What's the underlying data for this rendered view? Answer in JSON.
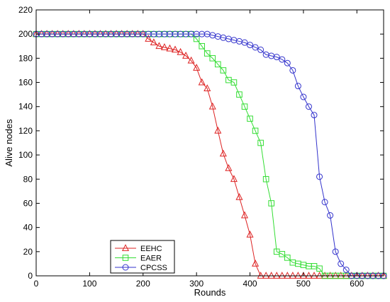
{
  "chart_data": {
    "type": "line",
    "xlabel": "Rounds",
    "ylabel": "Alive nodes",
    "xlim": [
      0,
      650
    ],
    "ylim": [
      0,
      220
    ],
    "xticks": [
      0,
      100,
      200,
      300,
      400,
      500,
      600
    ],
    "yticks": [
      0,
      20,
      40,
      60,
      80,
      100,
      120,
      140,
      160,
      180,
      200,
      220
    ],
    "grid": false,
    "legend_position": "bottom-left",
    "series": [
      {
        "name": "EEHC",
        "color": "#dd2222",
        "marker": "triangle",
        "points": [
          [
            0,
            200
          ],
          [
            10,
            200
          ],
          [
            20,
            200
          ],
          [
            30,
            200
          ],
          [
            40,
            200
          ],
          [
            50,
            200
          ],
          [
            60,
            200
          ],
          [
            70,
            200
          ],
          [
            80,
            200
          ],
          [
            90,
            200
          ],
          [
            100,
            200
          ],
          [
            110,
            200
          ],
          [
            120,
            200
          ],
          [
            130,
            200
          ],
          [
            140,
            200
          ],
          [
            150,
            200
          ],
          [
            160,
            200
          ],
          [
            170,
            200
          ],
          [
            180,
            200
          ],
          [
            190,
            200
          ],
          [
            200,
            200
          ],
          [
            210,
            196
          ],
          [
            220,
            193
          ],
          [
            230,
            190
          ],
          [
            240,
            189
          ],
          [
            250,
            188
          ],
          [
            260,
            187
          ],
          [
            270,
            185
          ],
          [
            280,
            182
          ],
          [
            290,
            178
          ],
          [
            300,
            172
          ],
          [
            310,
            160
          ],
          [
            320,
            155
          ],
          [
            330,
            140
          ],
          [
            340,
            120
          ],
          [
            350,
            101
          ],
          [
            360,
            89
          ],
          [
            370,
            80
          ],
          [
            380,
            65
          ],
          [
            390,
            50
          ],
          [
            400,
            34
          ],
          [
            410,
            10
          ],
          [
            420,
            0
          ],
          [
            430,
            0
          ],
          [
            440,
            0
          ],
          [
            450,
            0
          ],
          [
            460,
            0
          ],
          [
            470,
            0
          ],
          [
            480,
            0
          ],
          [
            490,
            0
          ],
          [
            500,
            0
          ],
          [
            510,
            0
          ],
          [
            520,
            0
          ],
          [
            530,
            0
          ],
          [
            540,
            0
          ],
          [
            550,
            0
          ],
          [
            560,
            0
          ],
          [
            570,
            0
          ],
          [
            580,
            0
          ],
          [
            590,
            0
          ],
          [
            600,
            0
          ],
          [
            610,
            0
          ],
          [
            620,
            0
          ],
          [
            630,
            0
          ],
          [
            640,
            0
          ],
          [
            650,
            0
          ]
        ]
      },
      {
        "name": "EAER",
        "color": "#33dd33",
        "marker": "square",
        "points": [
          [
            0,
            200
          ],
          [
            10,
            200
          ],
          [
            20,
            200
          ],
          [
            30,
            200
          ],
          [
            40,
            200
          ],
          [
            50,
            200
          ],
          [
            60,
            200
          ],
          [
            70,
            200
          ],
          [
            80,
            200
          ],
          [
            90,
            200
          ],
          [
            100,
            200
          ],
          [
            110,
            200
          ],
          [
            120,
            200
          ],
          [
            130,
            200
          ],
          [
            140,
            200
          ],
          [
            150,
            200
          ],
          [
            160,
            200
          ],
          [
            170,
            200
          ],
          [
            180,
            200
          ],
          [
            190,
            200
          ],
          [
            200,
            200
          ],
          [
            210,
            200
          ],
          [
            220,
            200
          ],
          [
            230,
            200
          ],
          [
            240,
            200
          ],
          [
            250,
            200
          ],
          [
            260,
            200
          ],
          [
            270,
            200
          ],
          [
            280,
            200
          ],
          [
            290,
            200
          ],
          [
            300,
            196
          ],
          [
            310,
            190
          ],
          [
            320,
            184
          ],
          [
            330,
            180
          ],
          [
            340,
            175
          ],
          [
            350,
            170
          ],
          [
            360,
            162
          ],
          [
            370,
            160
          ],
          [
            380,
            150
          ],
          [
            390,
            140
          ],
          [
            400,
            130
          ],
          [
            410,
            120
          ],
          [
            420,
            110
          ],
          [
            430,
            80
          ],
          [
            440,
            60
          ],
          [
            450,
            20
          ],
          [
            460,
            18
          ],
          [
            470,
            15
          ],
          [
            480,
            11
          ],
          [
            490,
            10
          ],
          [
            500,
            9
          ],
          [
            510,
            8
          ],
          [
            520,
            8
          ],
          [
            530,
            6
          ],
          [
            540,
            0
          ],
          [
            550,
            0
          ],
          [
            560,
            0
          ],
          [
            570,
            0
          ],
          [
            580,
            0
          ],
          [
            590,
            0
          ],
          [
            600,
            0
          ],
          [
            610,
            0
          ],
          [
            620,
            0
          ],
          [
            630,
            0
          ],
          [
            640,
            0
          ],
          [
            650,
            0
          ]
        ]
      },
      {
        "name": "CPCSS",
        "color": "#3333cc",
        "marker": "circle",
        "points": [
          [
            0,
            200
          ],
          [
            10,
            200
          ],
          [
            20,
            200
          ],
          [
            30,
            200
          ],
          [
            40,
            200
          ],
          [
            50,
            200
          ],
          [
            60,
            200
          ],
          [
            70,
            200
          ],
          [
            80,
            200
          ],
          [
            90,
            200
          ],
          [
            100,
            200
          ],
          [
            110,
            200
          ],
          [
            120,
            200
          ],
          [
            130,
            200
          ],
          [
            140,
            200
          ],
          [
            150,
            200
          ],
          [
            160,
            200
          ],
          [
            170,
            200
          ],
          [
            180,
            200
          ],
          [
            190,
            200
          ],
          [
            200,
            200
          ],
          [
            210,
            200
          ],
          [
            220,
            200
          ],
          [
            230,
            200
          ],
          [
            240,
            200
          ],
          [
            250,
            200
          ],
          [
            260,
            200
          ],
          [
            270,
            200
          ],
          [
            280,
            200
          ],
          [
            290,
            200
          ],
          [
            300,
            200
          ],
          [
            310,
            200
          ],
          [
            320,
            200
          ],
          [
            330,
            199
          ],
          [
            340,
            198
          ],
          [
            350,
            197
          ],
          [
            360,
            196
          ],
          [
            370,
            195
          ],
          [
            380,
            194
          ],
          [
            390,
            193
          ],
          [
            400,
            191
          ],
          [
            410,
            189
          ],
          [
            420,
            187
          ],
          [
            430,
            183
          ],
          [
            440,
            182
          ],
          [
            450,
            181
          ],
          [
            460,
            179
          ],
          [
            470,
            176
          ],
          [
            480,
            170
          ],
          [
            490,
            157
          ],
          [
            500,
            148
          ],
          [
            510,
            140
          ],
          [
            520,
            133
          ],
          [
            530,
            82
          ],
          [
            540,
            61
          ],
          [
            550,
            50
          ],
          [
            560,
            20
          ],
          [
            570,
            10
          ],
          [
            580,
            5
          ],
          [
            590,
            0
          ],
          [
            600,
            0
          ],
          [
            610,
            0
          ],
          [
            620,
            0
          ],
          [
            630,
            0
          ],
          [
            640,
            0
          ],
          [
            650,
            0
          ]
        ]
      }
    ]
  }
}
